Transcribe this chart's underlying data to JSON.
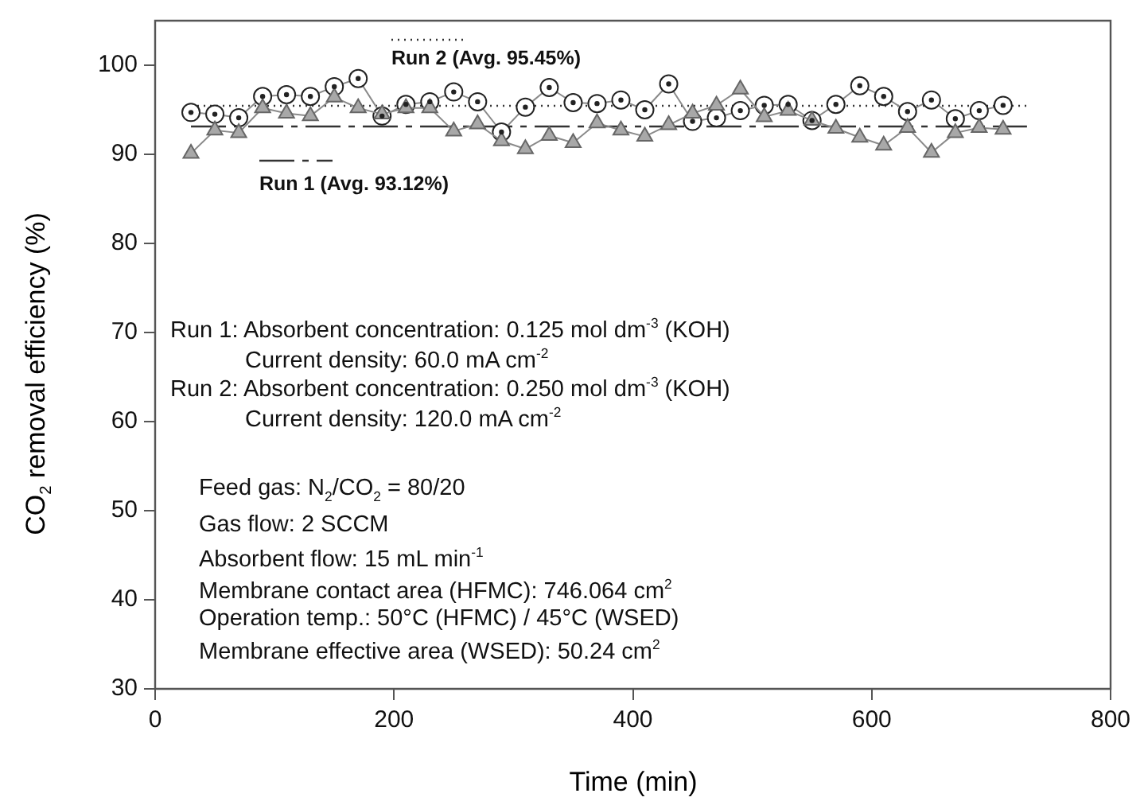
{
  "chart_data": {
    "type": "line",
    "xlabel": "Time (min)",
    "ylabel": "CO$_{2}$ removal efficiency (%)",
    "xlim": [
      0,
      800
    ],
    "xticks": [
      0,
      200,
      400,
      600,
      800
    ],
    "ylim": [
      30,
      105
    ],
    "yticks": [
      30,
      40,
      50,
      60,
      70,
      80,
      90,
      100
    ],
    "x": [
      30,
      50,
      70,
      90,
      110,
      130,
      150,
      170,
      190,
      210,
      230,
      250,
      270,
      290,
      310,
      330,
      350,
      370,
      390,
      410,
      430,
      450,
      470,
      490,
      510,
      530,
      550,
      570,
      590,
      610,
      630,
      650,
      670,
      690,
      710
    ],
    "series": [
      {
        "color": "#666666",
        "marker": "triangle",
        "values": [
          90.1,
          92.7,
          92.4,
          95.2,
          94.6,
          94.3,
          96.4,
          95.2,
          94.5,
          95.2,
          95.2,
          92.6,
          93.4,
          91.5,
          90.6,
          92.1,
          91.3,
          93.5,
          92.7,
          92.0,
          93.3,
          94.6,
          95.5,
          97.3,
          94.2,
          94.9,
          93.8,
          92.9,
          91.9,
          91.0,
          93.0,
          90.2,
          92.4,
          93.0,
          92.8
        ]
      },
      {
        "color": "#222222",
        "marker": "circle",
        "values": [
          94.7,
          94.5,
          94.1,
          96.5,
          96.7,
          96.5,
          97.6,
          98.5,
          94.3,
          95.6,
          95.9,
          97.0,
          95.9,
          92.5,
          95.3,
          97.5,
          95.8,
          95.7,
          96.1,
          95.0,
          97.9,
          93.7,
          94.1,
          94.9,
          95.5,
          95.6,
          93.8,
          95.6,
          97.7,
          96.5,
          94.8,
          96.1,
          94.0,
          94.9,
          95.5
        ]
      }
    ],
    "ref_lines": [
      {
        "axis": "y",
        "value": 95.45,
        "label": "Run 2 (Avg. 95.45%)",
        "line_style": "dotted",
        "color": "#333333"
      },
      {
        "axis": "y",
        "value": 93.12,
        "label": "Run 1 (Avg. 93.12%)",
        "line_style": "dashed",
        "color": "#333333"
      }
    ],
    "annotations": [
      "Run 1: Absorbent concentration: 0.125 mol dm$^{-3}$ (KOH)",
      "Current density: 60.0 mA cm$^{-2}$",
      "Run 2: Absorbent concentration: 0.250 mol dm$^{-3}$ (KOH)",
      "Current density: 120.0 mA cm$^{-2}$",
      "Feed gas: N$_{2}$/CO$_{2}$ = 80/20",
      "Gas flow: 2 SCCM",
      "Absorbent flow: 15 mL min$^{-1}$",
      "Membrane contact area (HFMC): 746.064 cm$^{2}$",
      "Operation temp.: 50°C (HFMC) / 45°C (WSED)",
      "Membrane effective area (WSED): 50.24 cm$^{2}$"
    ],
    "grid": false,
    "legend": "top left"
  }
}
